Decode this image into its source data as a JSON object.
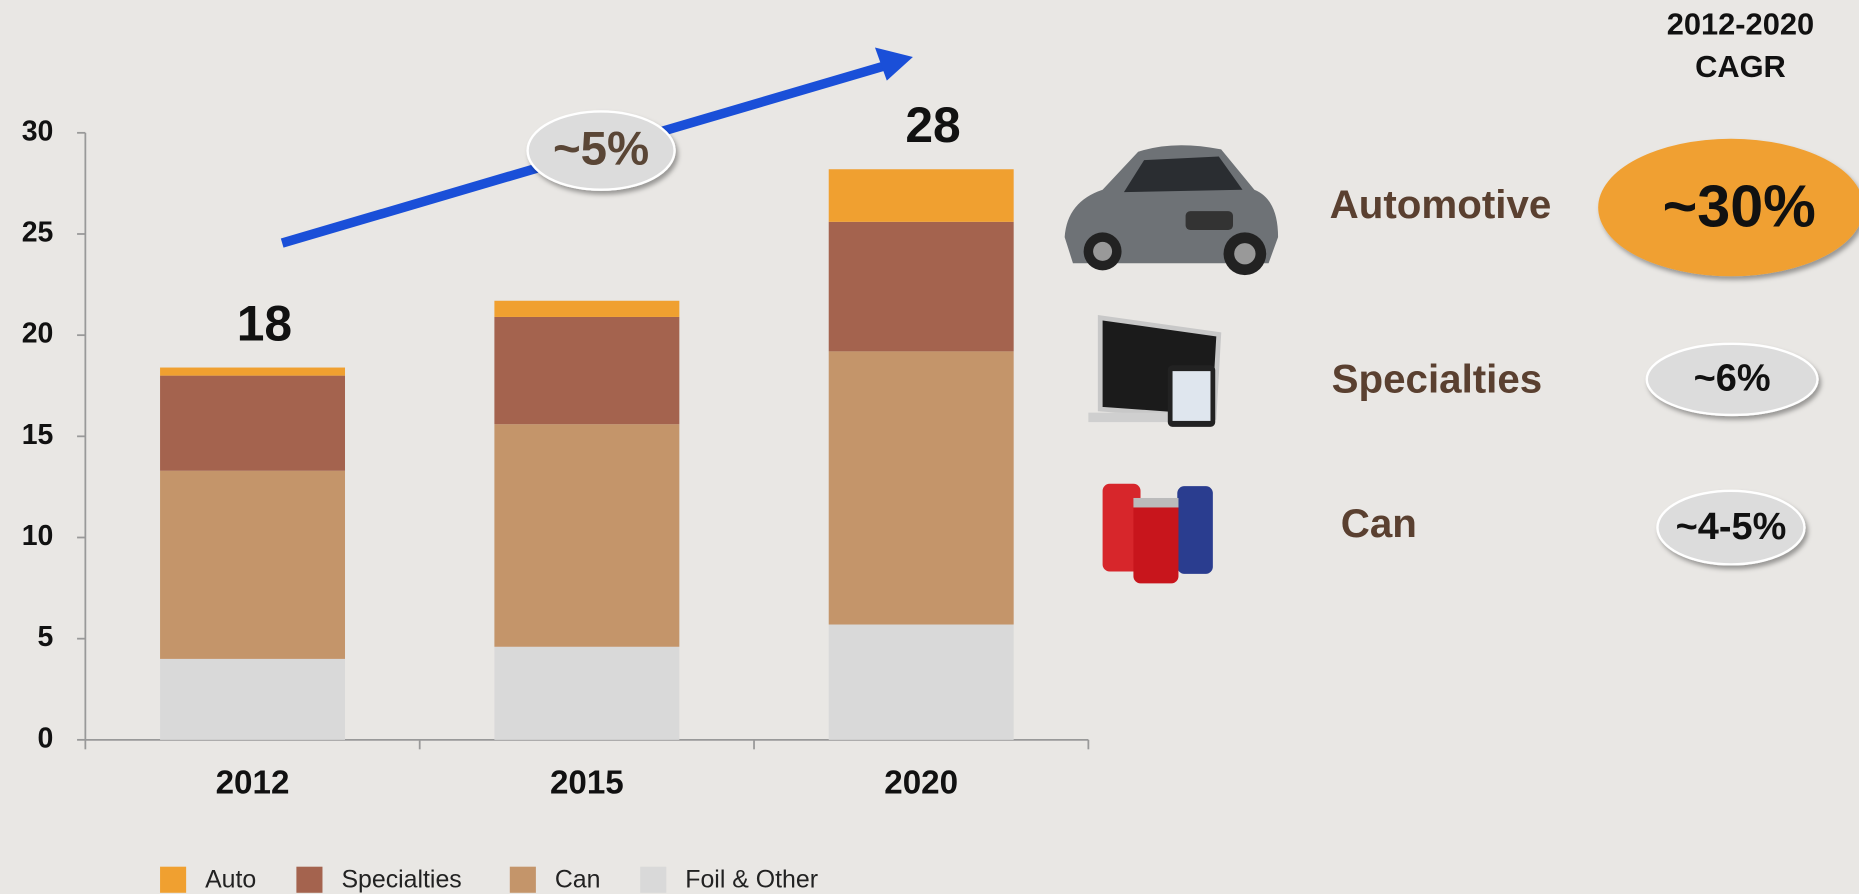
{
  "chart_data": {
    "type": "stacked-bar",
    "categories": [
      "2012",
      "2015",
      "2020"
    ],
    "series": [
      {
        "name": "Foil & Other",
        "color": "#d9d9d9",
        "values": [
          4.0,
          4.6,
          5.7
        ]
      },
      {
        "name": "Can",
        "color": "#c4956a",
        "values": [
          9.3,
          11.0,
          13.5
        ]
      },
      {
        "name": "Specialties",
        "color": "#a4634e",
        "values": [
          4.7,
          5.3,
          6.4
        ]
      },
      {
        "name": "Auto",
        "color": "#f0a030",
        "values": [
          0.4,
          0.8,
          2.6
        ]
      }
    ],
    "totals": [
      18,
      null,
      28
    ],
    "annotation": "~5%",
    "ylim": [
      0,
      30
    ],
    "yticks": [
      0,
      5,
      10,
      15,
      20,
      25,
      30
    ]
  },
  "cagr_panel": {
    "period": "2012-2020",
    "label": "CAGR",
    "rows": [
      {
        "segment": "Automotive",
        "cagr": "~30%"
      },
      {
        "segment": "Specialties",
        "cagr": "~6%"
      },
      {
        "segment": "Can",
        "cagr": "~4-5%"
      }
    ]
  }
}
